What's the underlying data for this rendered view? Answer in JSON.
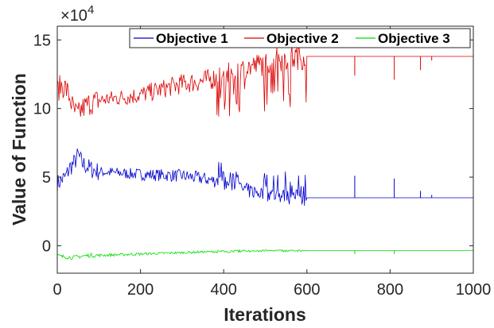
{
  "chart_data": {
    "type": "line",
    "xlabel": "Iterations",
    "ylabel": "Value of Function",
    "y_multiplier": "10",
    "y_multiplier_exponent": "4",
    "xlim": [
      0,
      1000
    ],
    "ylim": [
      -20000,
      160000
    ],
    "x_ticks": [
      0,
      200,
      400,
      600,
      800,
      1000
    ],
    "x_tick_labels": [
      "0",
      "200",
      "400",
      "600",
      "800",
      "1000"
    ],
    "y_ticks": [
      0,
      50000,
      100000,
      150000
    ],
    "y_tick_labels": [
      "0",
      "5",
      "10",
      "15"
    ],
    "legend_position": "top-right",
    "grid": false,
    "series": [
      {
        "name": "Objective 1",
        "color": "#0000cc",
        "x": [
          0,
          10,
          20,
          30,
          40,
          50,
          60,
          80,
          100,
          150,
          200,
          250,
          300,
          350,
          400,
          430,
          460,
          500,
          530,
          560,
          590,
          600,
          650,
          700,
          800,
          900,
          1000
        ],
        "y": [
          45000,
          48000,
          50000,
          57000,
          60000,
          66000,
          60000,
          56000,
          54000,
          53000,
          52000,
          51500,
          51000,
          49000,
          46000,
          43000,
          40000,
          38000,
          36500,
          35500,
          35000,
          35000,
          35000,
          35000,
          35000,
          35000,
          35000
        ],
        "spikes": [
          {
            "x": 715,
            "y": 51000
          },
          {
            "x": 810,
            "y": 49000
          },
          {
            "x": 873,
            "y": 40000
          },
          {
            "x": 900,
            "y": 37000
          }
        ]
      },
      {
        "name": "Objective 2",
        "color": "#dd0000",
        "x": [
          0,
          10,
          20,
          30,
          40,
          50,
          60,
          80,
          100,
          150,
          200,
          250,
          300,
          350,
          400,
          430,
          460,
          500,
          530,
          560,
          590,
          600,
          650,
          700,
          800,
          900,
          1000
        ],
        "y": [
          113000,
          117000,
          115000,
          108000,
          98000,
          95000,
          100000,
          104000,
          106000,
          108000,
          110000,
          114000,
          118000,
          120000,
          124000,
          127000,
          130000,
          133000,
          136000,
          137000,
          138000,
          138000,
          138000,
          138000,
          138000,
          138000,
          138000
        ],
        "spikes": [
          {
            "x": 715,
            "y": 124000
          },
          {
            "x": 810,
            "y": 121000
          },
          {
            "x": 873,
            "y": 128000
          },
          {
            "x": 900,
            "y": 135000
          }
        ]
      },
      {
        "name": "Objective 3",
        "color": "#00dd00",
        "x": [
          0,
          10,
          20,
          30,
          40,
          50,
          60,
          80,
          100,
          150,
          200,
          250,
          300,
          350,
          400,
          430,
          460,
          500,
          530,
          560,
          590,
          600,
          650,
          700,
          800,
          900,
          1000
        ],
        "y": [
          -7000,
          -8000,
          -8000,
          -8500,
          -8500,
          -8000,
          -7500,
          -7000,
          -7000,
          -6500,
          -6000,
          -5500,
          -5000,
          -4500,
          -4000,
          -3800,
          -3600,
          -3500,
          -3500,
          -3500,
          -3500,
          -3500,
          -3500,
          -3500,
          -3500,
          -3500,
          -3500
        ],
        "spikes": [
          {
            "x": 715,
            "y": -6000
          },
          {
            "x": 810,
            "y": -6000
          }
        ]
      }
    ]
  }
}
